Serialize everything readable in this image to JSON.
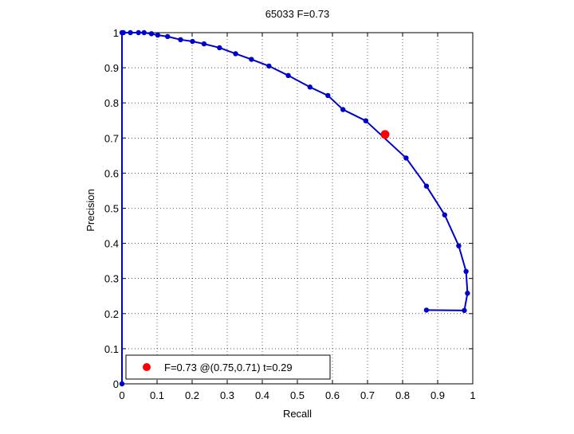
{
  "chart_data": {
    "type": "line",
    "title": "65033 F=0.73",
    "xlabel": "Recall",
    "ylabel": "Precision",
    "xlim": [
      0,
      1
    ],
    "ylim": [
      0,
      1
    ],
    "grid": true,
    "legend_position": "bottom-left",
    "x_ticks": [
      "0",
      "0.1",
      "0.2",
      "0.3",
      "0.4",
      "0.5",
      "0.6",
      "0.7",
      "0.8",
      "0.9",
      "1"
    ],
    "y_ticks": [
      "0",
      "0.1",
      "0.2",
      "0.3",
      "0.4",
      "0.5",
      "0.6",
      "0.7",
      "0.8",
      "0.9",
      "1"
    ],
    "series": [
      {
        "color": "#0000cc",
        "marker": "dot",
        "points": [
          [
            0.868,
            0.21
          ],
          [
            0.976,
            0.209
          ],
          [
            0.985,
            0.258
          ],
          [
            0.981,
            0.32
          ],
          [
            0.96,
            0.393
          ],
          [
            0.92,
            0.481
          ],
          [
            0.868,
            0.563
          ],
          [
            0.81,
            0.643
          ],
          [
            0.695,
            0.749
          ],
          [
            0.63,
            0.781
          ],
          [
            0.587,
            0.821
          ],
          [
            0.536,
            0.845
          ],
          [
            0.474,
            0.878
          ],
          [
            0.419,
            0.905
          ],
          [
            0.369,
            0.924
          ],
          [
            0.324,
            0.94
          ],
          [
            0.278,
            0.957
          ],
          [
            0.234,
            0.968
          ],
          [
            0.201,
            0.975
          ],
          [
            0.167,
            0.98
          ],
          [
            0.13,
            0.989
          ],
          [
            0.102,
            0.993
          ],
          [
            0.084,
            0.997
          ],
          [
            0.063,
            1.0
          ],
          [
            0.047,
            1.0
          ],
          [
            0.024,
            1.0
          ],
          [
            0.004,
            1.0
          ],
          [
            0.0,
            1.0
          ],
          [
            0.0,
            0.0
          ]
        ]
      }
    ],
    "best_point": {
      "x": 0.75,
      "y": 0.71,
      "color": "#ff0000",
      "label": "F=0.73 @(0.75,0.71) t=0.29"
    }
  }
}
